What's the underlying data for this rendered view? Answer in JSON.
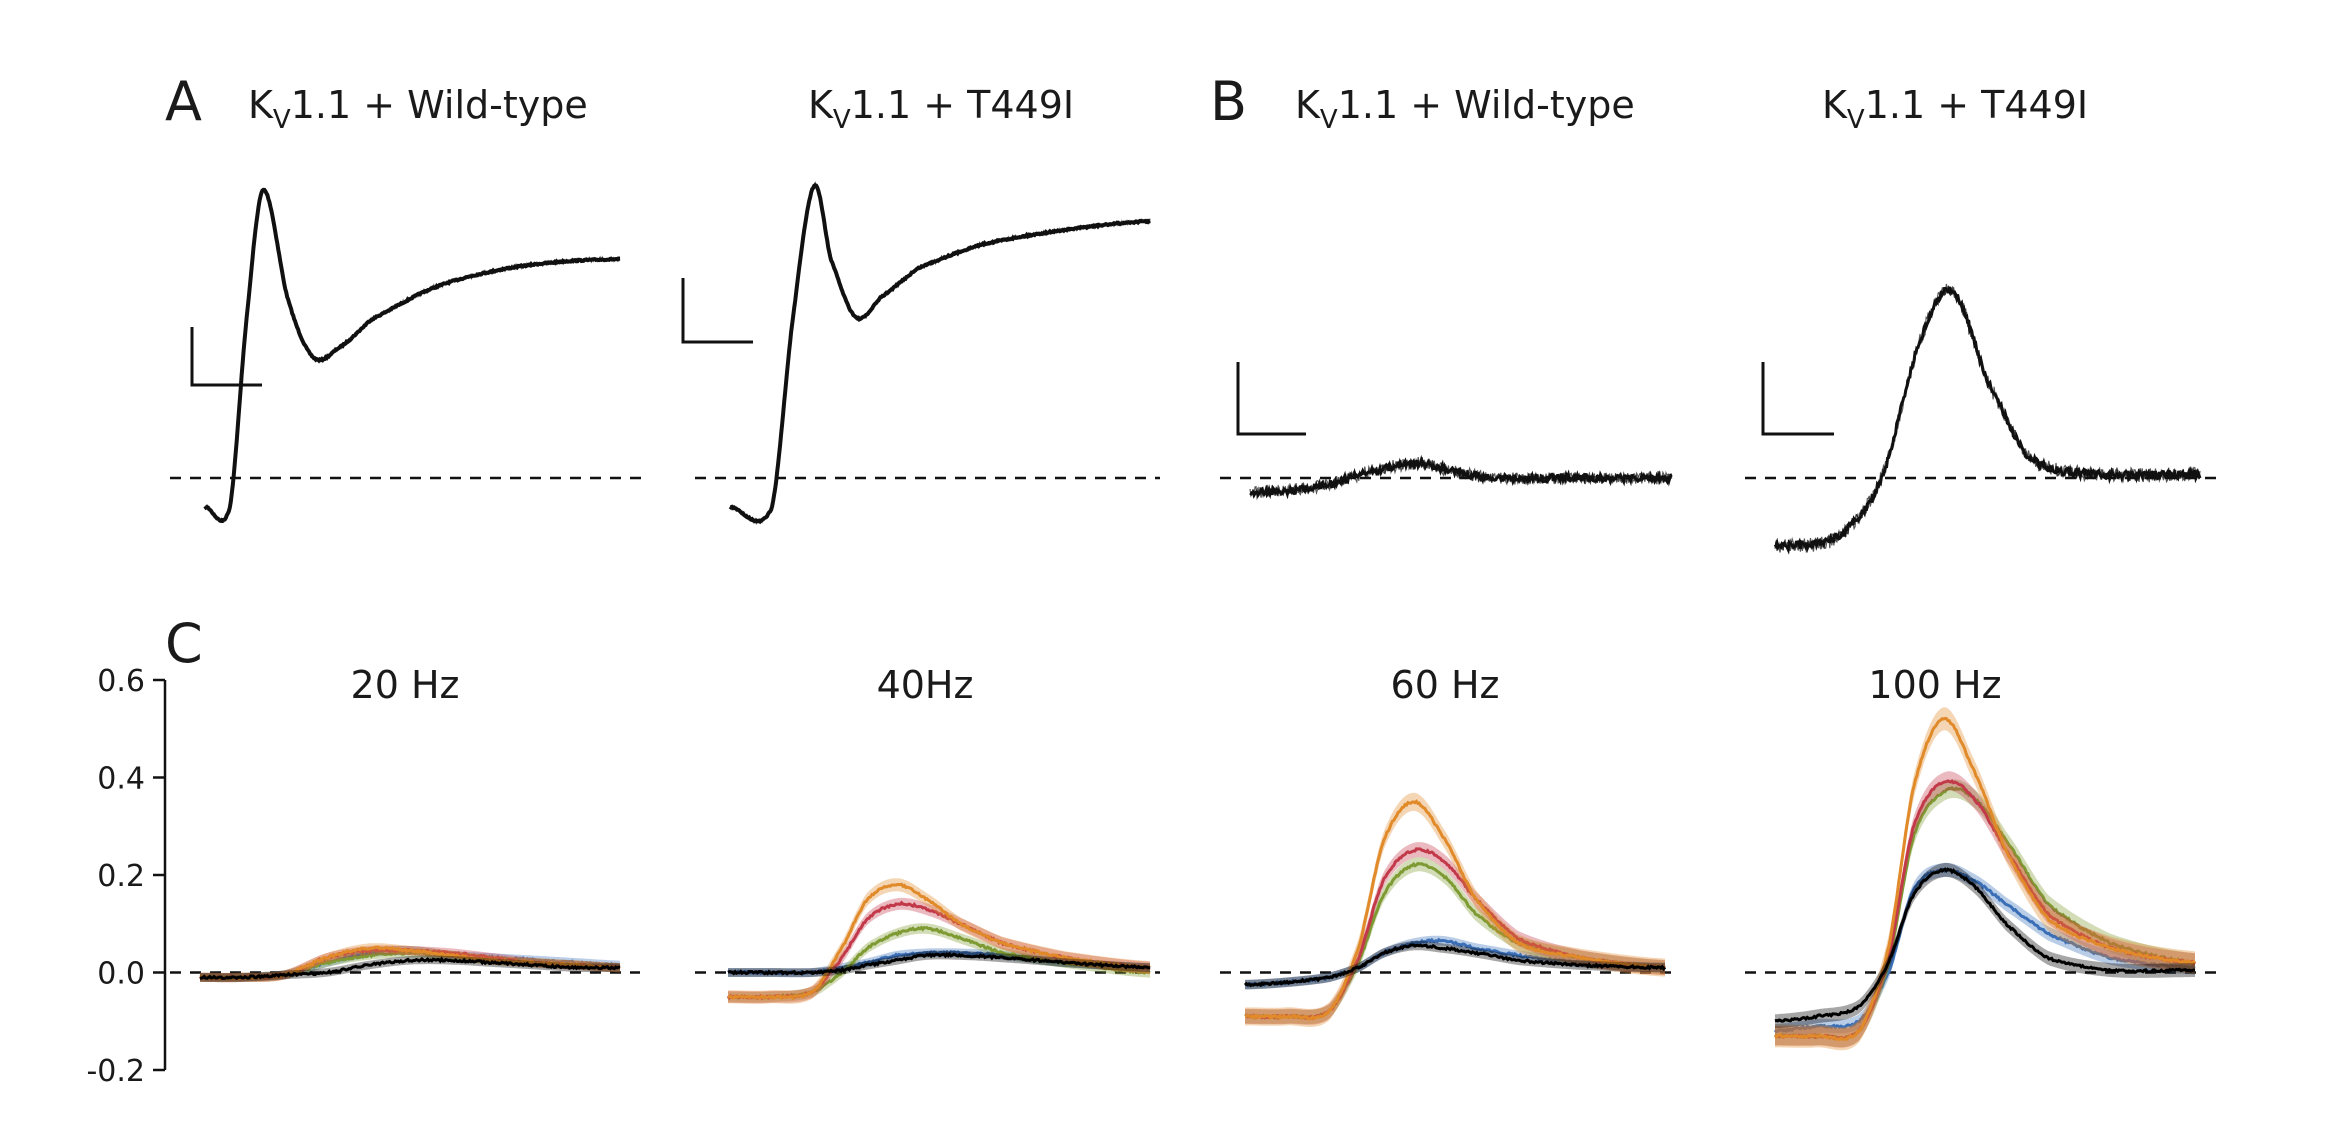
{
  "panels": {
    "A": {
      "letter": "A",
      "titles": [
        {
          "pre": "K",
          "sub": "V",
          "post": "1.1 + Wild-type"
        },
        {
          "pre": "K",
          "sub": "V",
          "post": "1.1 + T449I"
        }
      ]
    },
    "B": {
      "letter": "B",
      "titles": [
        {
          "pre": "K",
          "sub": "V",
          "post": "1.1 + Wild-type"
        },
        {
          "pre": "K",
          "sub": "V",
          "post": "1.1 + T449I"
        }
      ]
    },
    "C": {
      "letter": "C"
    }
  },
  "chart_data": [
    {
      "type": "line",
      "panel": "A",
      "condition": "KV1.1 + Wild-type",
      "description_scale": "unlabeled scale bar",
      "x": [
        0,
        0.06,
        0.1,
        0.14,
        0.2,
        0.26,
        0.32,
        0.4,
        0.55,
        0.7,
        0.85,
        1.0
      ],
      "values": [
        -0.1,
        -0.1,
        0.55,
        1.0,
        0.62,
        0.42,
        0.45,
        0.55,
        0.66,
        0.72,
        0.75,
        0.76
      ],
      "baseline": 0
    },
    {
      "type": "line",
      "panel": "A",
      "condition": "KV1.1 + T449I",
      "x": [
        0,
        0.1,
        0.15,
        0.2,
        0.24,
        0.3,
        0.36,
        0.45,
        0.6,
        0.8,
        1.0
      ],
      "values": [
        -0.1,
        -0.1,
        0.55,
        1.0,
        0.75,
        0.55,
        0.62,
        0.72,
        0.8,
        0.85,
        0.88
      ],
      "baseline": 0
    },
    {
      "type": "line",
      "panel": "B",
      "condition": "KV1.1 + Wild-type",
      "x": [
        0,
        0.15,
        0.3,
        0.4,
        0.5,
        0.6,
        0.75,
        1.0
      ],
      "values": [
        -0.12,
        -0.08,
        0.06,
        0.12,
        0.04,
        0.0,
        0.0,
        0.0
      ],
      "baseline": 0
    },
    {
      "type": "line",
      "panel": "B",
      "condition": "KV1.1 + T449I",
      "x": [
        0,
        0.15,
        0.25,
        0.35,
        0.42,
        0.5,
        0.6,
        0.75,
        1.0
      ],
      "values": [
        -0.35,
        -0.3,
        0.0,
        0.75,
        0.95,
        0.5,
        0.1,
        0.02,
        0.02
      ],
      "baseline": 0
    },
    {
      "type": "line",
      "panel": "C",
      "title": "20 Hz",
      "ylim": [
        -0.2,
        0.6
      ],
      "yticks": [
        0.6,
        0.4,
        0.2,
        0.0,
        -0.2
      ],
      "x": [
        0,
        0.1,
        0.2,
        0.3,
        0.4,
        0.5,
        0.6,
        0.7,
        0.8,
        0.9,
        1.0
      ],
      "series": [
        {
          "color": "#000000",
          "values": [
            -0.01,
            -0.01,
            -0.005,
            0.0,
            0.015,
            0.025,
            0.025,
            0.02,
            0.015,
            0.01,
            0.01
          ]
        },
        {
          "color": "#3a6fb8",
          "values": [
            -0.01,
            -0.01,
            -0.005,
            0.02,
            0.04,
            0.045,
            0.035,
            0.03,
            0.025,
            0.02,
            0.015
          ]
        },
        {
          "color": "#e08a2a",
          "values": [
            -0.01,
            -0.01,
            -0.005,
            0.03,
            0.05,
            0.045,
            0.035,
            0.025,
            0.02,
            0.015,
            0.01
          ]
        },
        {
          "color": "#c23a4a",
          "values": [
            -0.01,
            -0.01,
            -0.005,
            0.03,
            0.045,
            0.045,
            0.04,
            0.03,
            0.02,
            0.015,
            0.01
          ]
        },
        {
          "color": "#7e9a32",
          "values": [
            -0.01,
            -0.01,
            -0.005,
            0.02,
            0.035,
            0.04,
            0.035,
            0.025,
            0.02,
            0.015,
            0.01
          ]
        }
      ]
    },
    {
      "type": "line",
      "panel": "C",
      "title": "40Hz",
      "ylim": [
        -0.2,
        0.6
      ],
      "x": [
        0,
        0.1,
        0.2,
        0.27,
        0.33,
        0.4,
        0.47,
        0.55,
        0.65,
        0.8,
        1.0
      ],
      "series": [
        {
          "color": "#000000",
          "values": [
            0.0,
            0.0,
            0.0,
            0.005,
            0.015,
            0.025,
            0.035,
            0.035,
            0.03,
            0.02,
            0.01
          ]
        },
        {
          "color": "#3a6fb8",
          "values": [
            0.0,
            0.0,
            0.0,
            0.01,
            0.02,
            0.035,
            0.04,
            0.04,
            0.035,
            0.02,
            0.01
          ]
        },
        {
          "color": "#e08a2a",
          "values": [
            -0.05,
            -0.05,
            -0.04,
            0.05,
            0.15,
            0.18,
            0.15,
            0.1,
            0.06,
            0.03,
            0.01
          ]
        },
        {
          "color": "#c23a4a",
          "values": [
            -0.05,
            -0.05,
            -0.04,
            0.03,
            0.11,
            0.14,
            0.13,
            0.1,
            0.06,
            0.03,
            0.01
          ]
        },
        {
          "color": "#7e9a32",
          "values": [
            -0.05,
            -0.05,
            -0.04,
            0.0,
            0.05,
            0.08,
            0.09,
            0.07,
            0.04,
            0.02,
            0.0
          ]
        }
      ]
    },
    {
      "type": "line",
      "panel": "C",
      "title": "60 Hz",
      "ylim": [
        -0.2,
        0.6
      ],
      "x": [
        0,
        0.1,
        0.2,
        0.27,
        0.33,
        0.4,
        0.47,
        0.55,
        0.65,
        0.8,
        1.0
      ],
      "series": [
        {
          "color": "#000000",
          "values": [
            -0.025,
            -0.02,
            -0.01,
            0.01,
            0.04,
            0.055,
            0.05,
            0.04,
            0.025,
            0.015,
            0.01
          ]
        },
        {
          "color": "#3a6fb8",
          "values": [
            -0.025,
            -0.02,
            -0.01,
            0.01,
            0.04,
            0.06,
            0.065,
            0.05,
            0.035,
            0.02,
            0.01
          ]
        },
        {
          "color": "#e08a2a",
          "values": [
            -0.09,
            -0.09,
            -0.08,
            0.05,
            0.27,
            0.35,
            0.28,
            0.15,
            0.06,
            0.03,
            0.01
          ]
        },
        {
          "color": "#c23a4a",
          "values": [
            -0.09,
            -0.09,
            -0.08,
            0.03,
            0.19,
            0.25,
            0.23,
            0.15,
            0.07,
            0.03,
            0.01
          ]
        },
        {
          "color": "#7e9a32",
          "values": [
            -0.09,
            -0.09,
            -0.08,
            0.02,
            0.16,
            0.22,
            0.2,
            0.12,
            0.06,
            0.03,
            0.01
          ]
        }
      ]
    },
    {
      "type": "line",
      "panel": "C",
      "title": "100 Hz",
      "ylim": [
        -0.2,
        0.6
      ],
      "x": [
        0,
        0.1,
        0.2,
        0.27,
        0.33,
        0.4,
        0.47,
        0.55,
        0.65,
        0.8,
        1.0
      ],
      "series": [
        {
          "color": "#000000",
          "values": [
            -0.1,
            -0.09,
            -0.07,
            0.02,
            0.16,
            0.21,
            0.18,
            0.1,
            0.03,
            0.005,
            0.005
          ]
        },
        {
          "color": "#3a6fb8",
          "values": [
            -0.12,
            -0.11,
            -0.1,
            0.0,
            0.17,
            0.21,
            0.19,
            0.14,
            0.08,
            0.03,
            0.01
          ]
        },
        {
          "color": "#e08a2a",
          "values": [
            -0.13,
            -0.13,
            -0.12,
            0.05,
            0.38,
            0.52,
            0.42,
            0.25,
            0.11,
            0.05,
            0.02
          ]
        },
        {
          "color": "#c23a4a",
          "values": [
            -0.13,
            -0.13,
            -0.12,
            0.03,
            0.3,
            0.39,
            0.36,
            0.25,
            0.12,
            0.05,
            0.02
          ]
        },
        {
          "color": "#7e9a32",
          "values": [
            -0.13,
            -0.13,
            -0.12,
            0.02,
            0.28,
            0.37,
            0.36,
            0.27,
            0.14,
            0.06,
            0.02
          ]
        }
      ]
    }
  ]
}
